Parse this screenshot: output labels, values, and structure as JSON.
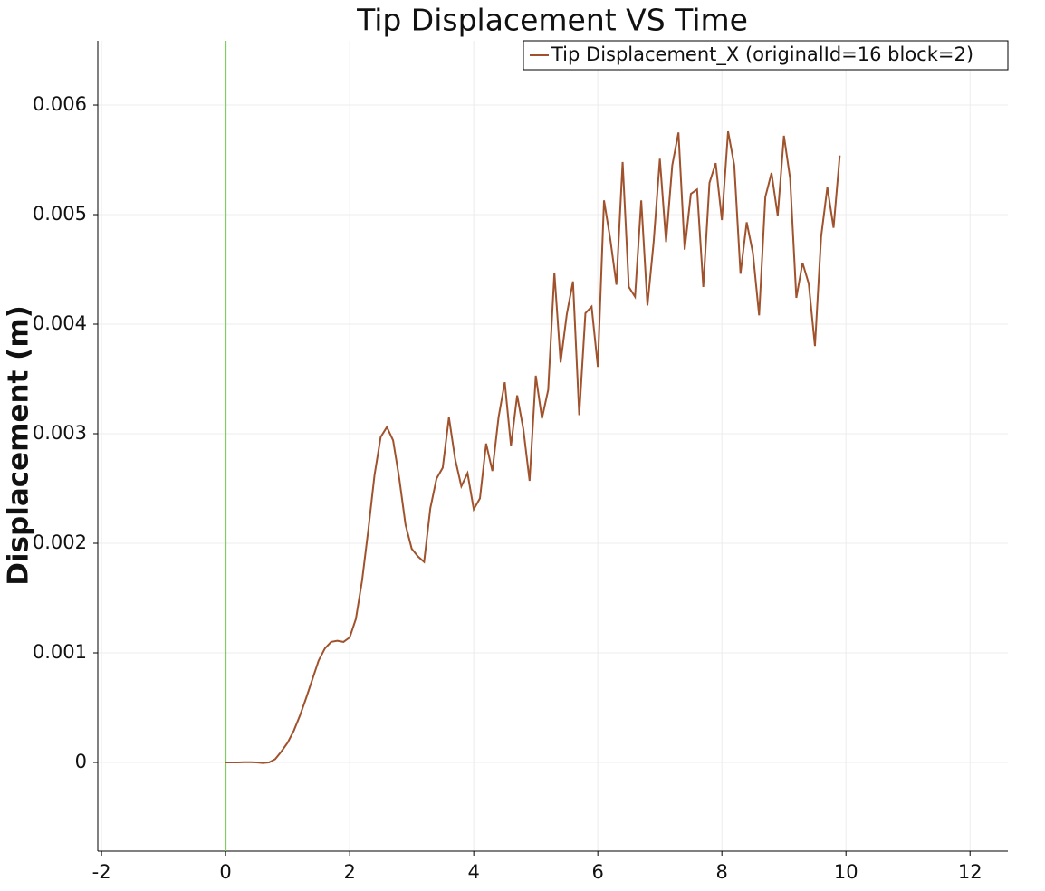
{
  "chart_data": {
    "type": "line",
    "title": "Tip Displacement VS Time",
    "ylabel": "Displacement (m)",
    "x": [
      0,
      0.1,
      0.2,
      0.3,
      0.4,
      0.5,
      0.6,
      0.7,
      0.8,
      0.9,
      1,
      1.1,
      1.2,
      1.3,
      1.4,
      1.5,
      1.6,
      1.7,
      1.8,
      1.9,
      2,
      2.1,
      2.2,
      2.3,
      2.4,
      2.5,
      2.6,
      2.7,
      2.8,
      2.9,
      3,
      3.1,
      3.2,
      3.3,
      3.4,
      3.5,
      3.6,
      3.7,
      3.8,
      3.9,
      4,
      4.1,
      4.2,
      4.3,
      4.4,
      4.5,
      4.6,
      4.7,
      4.8,
      4.9,
      5,
      5.1,
      5.2,
      5.3,
      5.4,
      5.5,
      5.6,
      5.7,
      5.8,
      5.9,
      6,
      6.1,
      6.2,
      6.3,
      6.4,
      6.5,
      6.6,
      6.7,
      6.8,
      6.9,
      7,
      7.1,
      7.2,
      7.3,
      7.4,
      7.5,
      7.6,
      7.7,
      7.8,
      7.9,
      8,
      8.1,
      8.2,
      8.3,
      8.4,
      8.5,
      8.6,
      8.7,
      8.8,
      8.9,
      9,
      9.1,
      9.2,
      9.3,
      9.4,
      9.5,
      9.6,
      9.7,
      9.8,
      9.9
    ],
    "series": [
      {
        "name": "Tip Displacement_X (originalId=16 block=2)",
        "color": "#a0522d",
        "values": [
          0,
          0,
          0,
          2e-06,
          2e-06,
          0,
          -5e-06,
          0,
          3e-05,
          0.0001,
          0.00018,
          0.00029,
          0.00043,
          0.00059,
          0.00076,
          0.00093,
          0.00104,
          0.0011,
          0.00111,
          0.0011,
          0.00114,
          0.00131,
          0.00166,
          0.00212,
          0.00262,
          0.00297,
          0.00306,
          0.00294,
          0.00259,
          0.00217,
          0.00195,
          0.00188,
          0.00183,
          0.00232,
          0.00259,
          0.00269,
          0.00315,
          0.00277,
          0.00252,
          0.00264,
          0.00231,
          0.00241,
          0.00291,
          0.00266,
          0.00315,
          0.00347,
          0.00289,
          0.00335,
          0.00304,
          0.00257,
          0.00353,
          0.00314,
          0.0034,
          0.00447,
          0.00365,
          0.00409,
          0.00439,
          0.00317,
          0.0041,
          0.00416,
          0.00361,
          0.00513,
          0.00478,
          0.00436,
          0.00548,
          0.00434,
          0.00425,
          0.00513,
          0.00417,
          0.00475,
          0.00551,
          0.00475,
          0.00545,
          0.00575,
          0.00468,
          0.00519,
          0.00523,
          0.00434,
          0.00529,
          0.00547,
          0.00495,
          0.00576,
          0.00545,
          0.00446,
          0.00493,
          0.00465,
          0.00408,
          0.00516,
          0.00538,
          0.00499,
          0.00572,
          0.00533,
          0.00424,
          0.00456,
          0.00437,
          0.0038,
          0.0048,
          0.00525,
          0.00488,
          0.00554
        ]
      }
    ],
    "time_marker": 0,
    "time_marker_color": "#7fcf5f",
    "xlim": [
      -2.06,
      12.61
    ],
    "xticks": [
      -2,
      0,
      2,
      4,
      6,
      8,
      10,
      12
    ],
    "ylim": [
      -0.00081,
      0.006587
    ],
    "yticks": [
      0,
      0.001,
      0.002,
      0.003,
      0.004,
      0.005,
      0.006
    ],
    "grid": true,
    "legend": "top-right"
  }
}
